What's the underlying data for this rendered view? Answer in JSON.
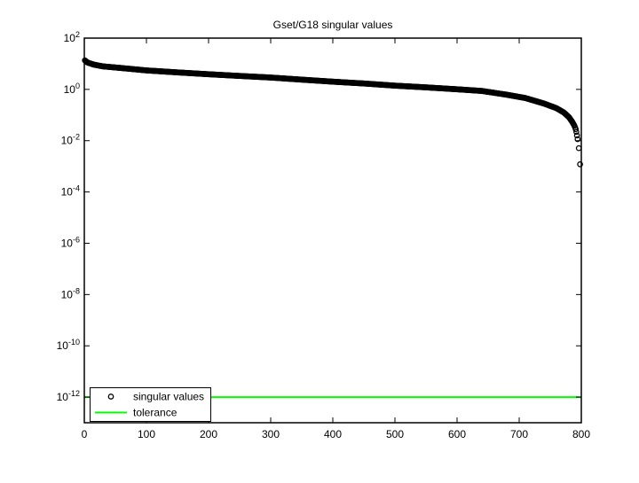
{
  "figure": {
    "background": "#ffffff",
    "axis_color": "#000000",
    "text_color": "#000000"
  },
  "chart_data": {
    "type": "scatter",
    "title": "Gset/G18 singular values",
    "xlabel": "",
    "ylabel": "",
    "grid": false,
    "x_axis": {
      "lim": [
        0,
        800
      ],
      "ticks": [
        0,
        100,
        200,
        300,
        400,
        500,
        600,
        700,
        800
      ]
    },
    "y_axis": {
      "scale": "log10",
      "lim_exponents": [
        -13,
        2
      ],
      "tick_exponents": [
        2,
        0,
        -2,
        -4,
        -6,
        -8,
        -10,
        -12
      ],
      "tick_label_base": "10"
    },
    "legend": {
      "position": "lower-left",
      "entries": [
        {
          "label": "singular values",
          "marker": "open-circle",
          "color": "#000000"
        },
        {
          "label": "tolerance",
          "marker": "line",
          "color": "#00ff00"
        }
      ]
    },
    "series": [
      {
        "name": "singular values",
        "style": "open-circle-markers",
        "color": "#000000",
        "n_points_depicted": 796,
        "band_x_range": [
          1,
          792
        ],
        "band_anchor_points": {
          "x": [
            1,
            5,
            15,
            30,
            60,
            100,
            150,
            200,
            250,
            300,
            350,
            400,
            450,
            500,
            550,
            600,
            640,
            680,
            710,
            740,
            760,
            772,
            780,
            785,
            789,
            791,
            792
          ],
          "value": [
            13.5,
            11.2,
            9.3,
            7.9,
            6.8,
            5.5,
            4.6,
            3.9,
            3.35,
            2.9,
            2.4,
            2.0,
            1.7,
            1.4,
            1.2,
            1.01,
            0.87,
            0.62,
            0.46,
            0.28,
            0.185,
            0.125,
            0.083,
            0.056,
            0.038,
            0.028,
            0.022
          ]
        },
        "tail_outlier_points": {
          "x": [
            793,
            794,
            796,
            798
          ],
          "value": [
            0.016,
            0.0115,
            0.0051,
            0.0012
          ]
        }
      },
      {
        "name": "tolerance",
        "style": "horizontal-line",
        "color": "#00ff00",
        "value": 1e-12
      }
    ]
  }
}
